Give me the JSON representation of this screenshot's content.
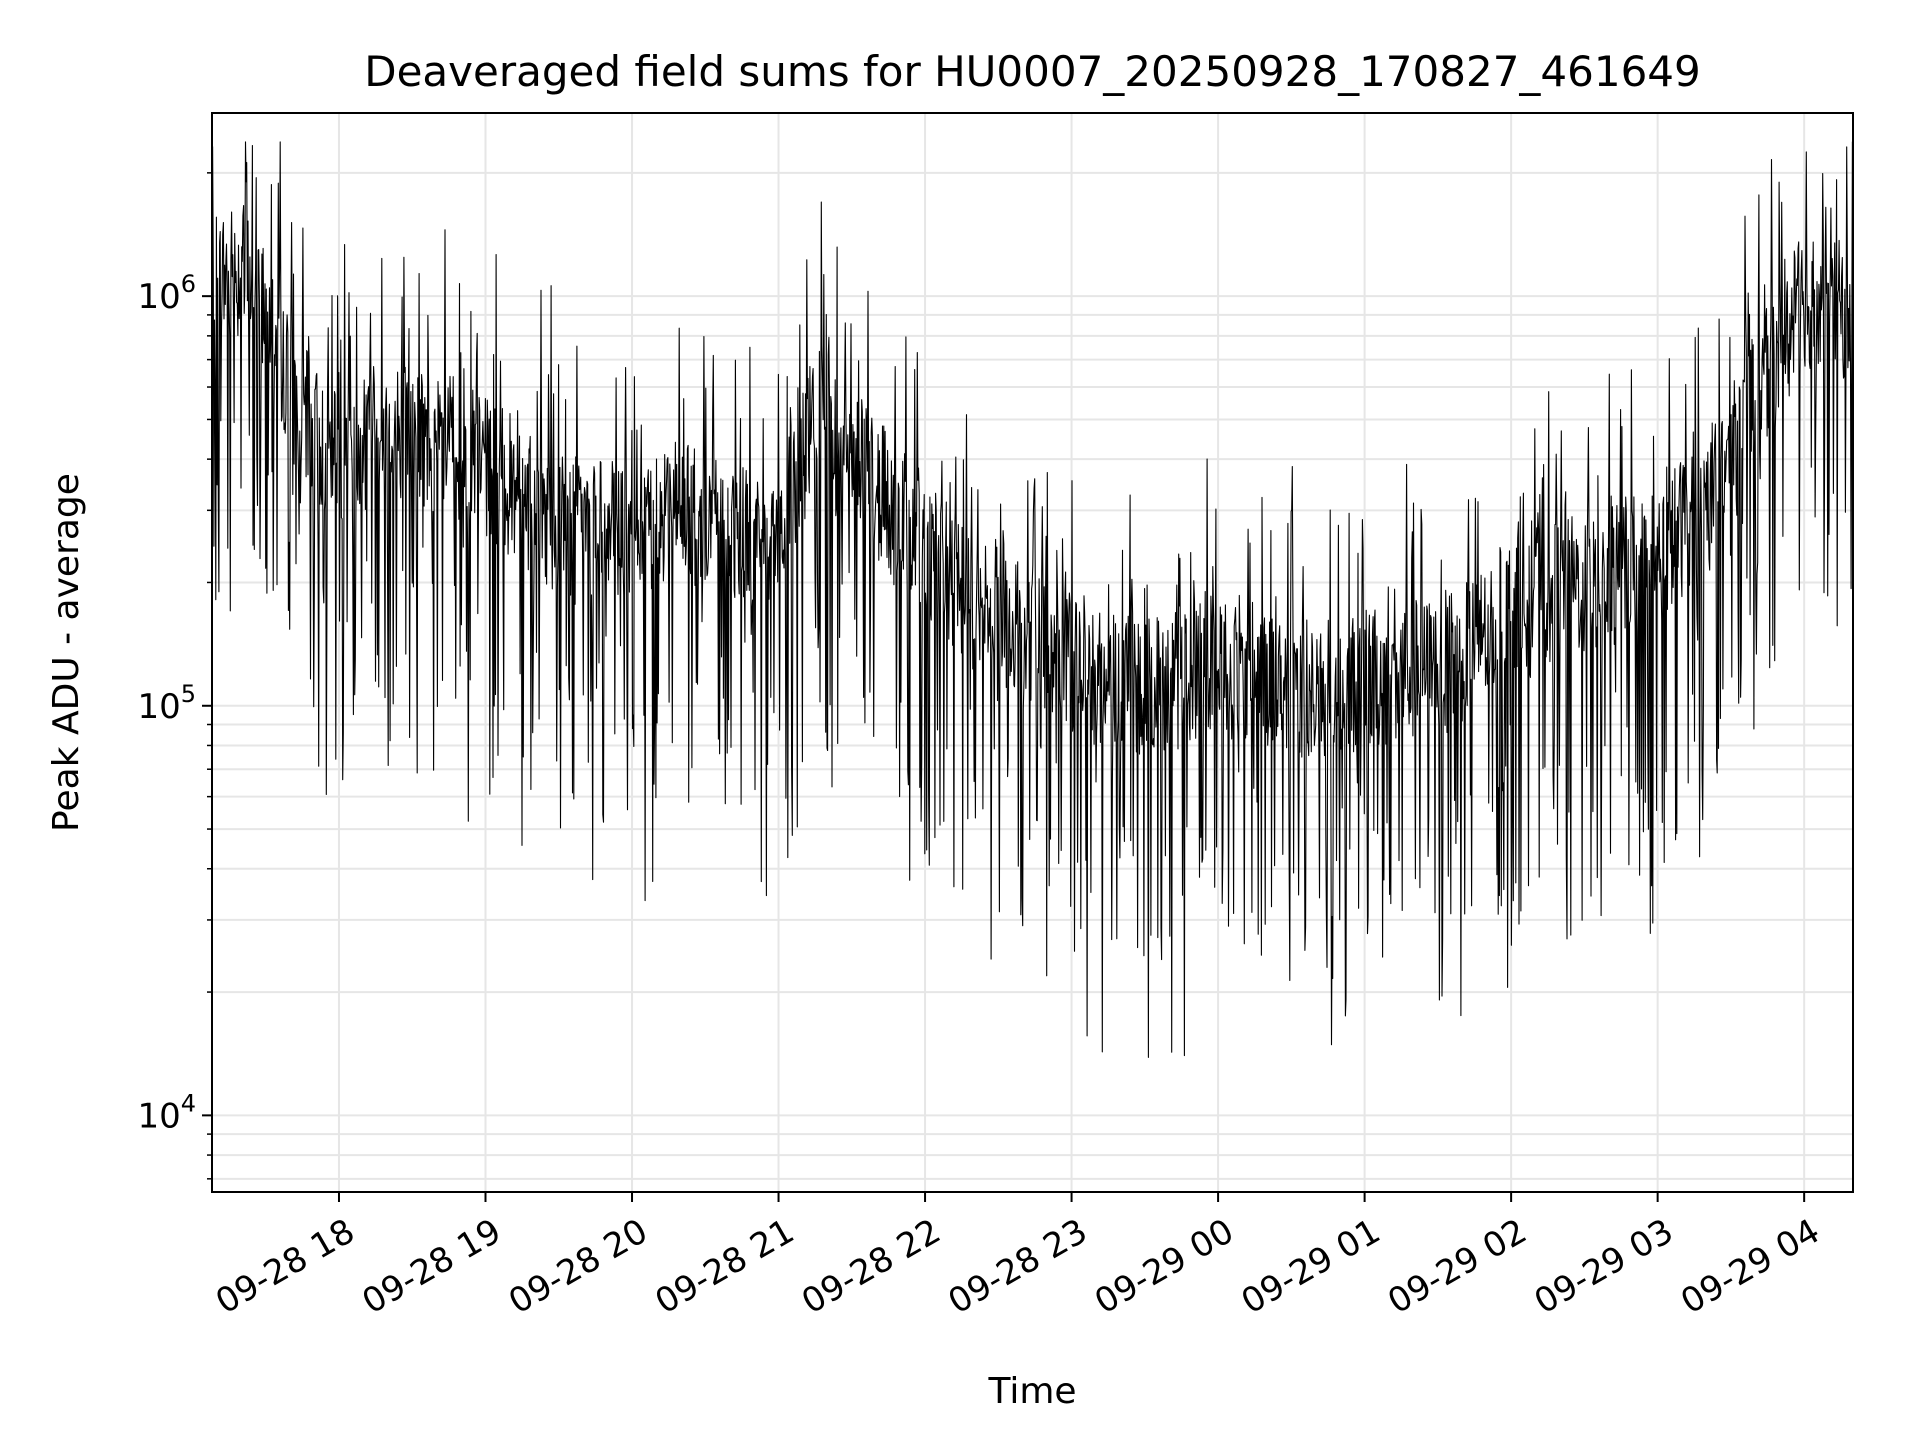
{
  "chart_data": {
    "type": "line",
    "title": "Deaveraged field sums for HU0007_20250928_170827_461649",
    "xlabel": "Time",
    "ylabel": "Peak ADU - average",
    "yscale": "log",
    "ylim": [
      6500,
      2800000
    ],
    "xlim": [
      "2025-09-28 17:08",
      "2025-09-29 04:20"
    ],
    "grid": true,
    "line_color": "#000000",
    "x_ticks": [
      {
        "time": "2025-09-28 18:00",
        "label": "09-28 18"
      },
      {
        "time": "2025-09-28 19:00",
        "label": "09-28 19"
      },
      {
        "time": "2025-09-28 20:00",
        "label": "09-28 20"
      },
      {
        "time": "2025-09-28 21:00",
        "label": "09-28 21"
      },
      {
        "time": "2025-09-28 22:00",
        "label": "09-28 22"
      },
      {
        "time": "2025-09-28 23:00",
        "label": "09-28 23"
      },
      {
        "time": "2025-09-29 00:00",
        "label": "09-29 00"
      },
      {
        "time": "2025-09-29 01:00",
        "label": "09-29 01"
      },
      {
        "time": "2025-09-29 02:00",
        "label": "09-29 02"
      },
      {
        "time": "2025-09-29 03:00",
        "label": "09-29 03"
      },
      {
        "time": "2025-09-29 04:00",
        "label": "09-29 04"
      }
    ],
    "y_ticks": [
      {
        "value": 10000,
        "base": "10",
        "exp": "4"
      },
      {
        "value": 100000,
        "base": "10",
        "exp": "5"
      },
      {
        "value": 1000000,
        "base": "10",
        "exp": "6"
      }
    ],
    "series": [
      {
        "x": [
          "2025-09-28 17:08",
          "2025-09-28 17:20",
          "2025-09-28 17:30",
          "2025-09-28 17:40",
          "2025-09-28 17:50",
          "2025-09-28 18:00",
          "2025-09-28 18:15",
          "2025-09-28 18:30",
          "2025-09-28 18:45",
          "2025-09-28 19:00",
          "2025-09-28 19:15",
          "2025-09-28 19:30",
          "2025-09-28 19:45",
          "2025-09-28 20:00",
          "2025-09-28 20:15",
          "2025-09-28 20:30",
          "2025-09-28 20:45",
          "2025-09-28 21:00",
          "2025-09-28 21:15",
          "2025-09-28 21:30",
          "2025-09-28 21:45",
          "2025-09-28 22:00",
          "2025-09-28 22:15",
          "2025-09-28 22:30",
          "2025-09-28 22:45",
          "2025-09-28 23:00",
          "2025-09-28 23:15",
          "2025-09-28 23:30",
          "2025-09-28 23:45",
          "2025-09-29 00:00",
          "2025-09-29 00:15",
          "2025-09-29 00:30",
          "2025-09-29 00:45",
          "2025-09-29 01:00",
          "2025-09-29 01:15",
          "2025-09-29 01:30",
          "2025-09-29 01:45",
          "2025-09-29 02:00",
          "2025-09-29 02:15",
          "2025-09-29 02:30",
          "2025-09-29 02:45",
          "2025-09-29 03:00",
          "2025-09-29 03:15",
          "2025-09-29 03:30",
          "2025-09-29 03:45",
          "2025-09-29 04:00",
          "2025-09-29 04:10",
          "2025-09-29 04:20"
        ],
        "y": [
          1100000,
          1150000,
          1000000,
          600000,
          450000,
          420000,
          480000,
          460000,
          430000,
          380000,
          330000,
          280000,
          270000,
          260000,
          300000,
          280000,
          270000,
          260000,
          500000,
          420000,
          300000,
          250000,
          190000,
          170000,
          150000,
          125000,
          115000,
          110000,
          120000,
          125000,
          120000,
          115000,
          110000,
          115000,
          120000,
          125000,
          140000,
          170000,
          190000,
          200000,
          210000,
          230000,
          300000,
          400000,
          650000,
          1000000,
          900000,
          950000
        ]
      }
    ]
  }
}
